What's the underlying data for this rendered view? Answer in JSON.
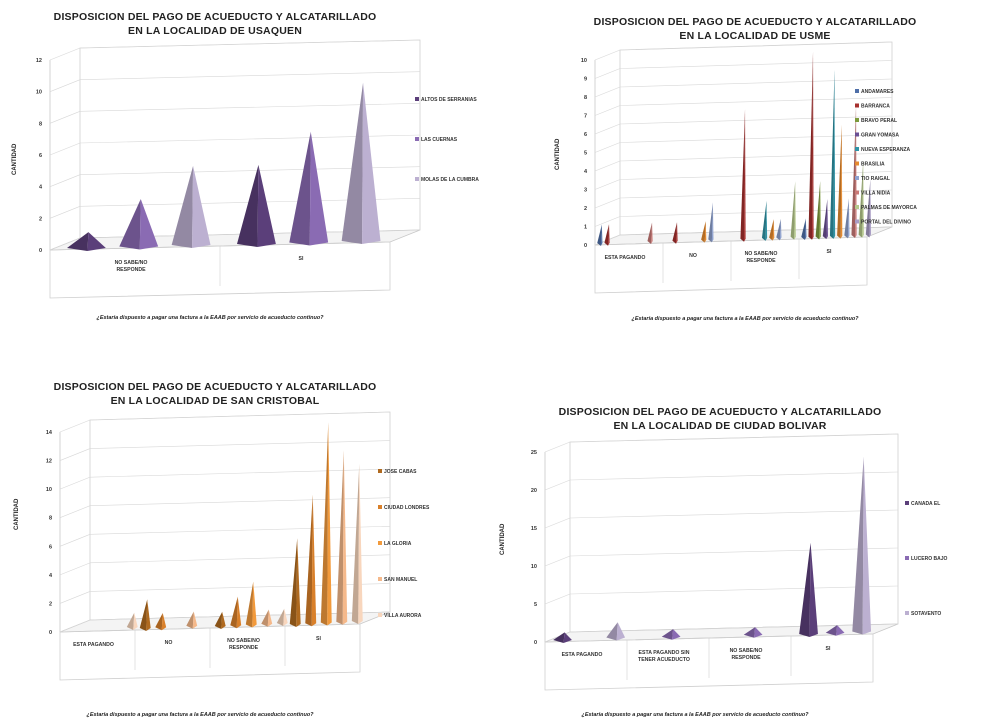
{
  "chart_data": [
    {
      "type": "bar",
      "title_line1": "DISPOSICION DEL PAGO DE ACUEDUCTO Y ALCATARILLADO",
      "title_line2": "EN LA LOCALIDAD  DE  USAQUEN",
      "ylabel": "CANTIDAD",
      "xlabel": "¿Estaria dispuesto a pagar una factura a la EAAB por servicio de acueducto continuo?",
      "yticks": [
        0,
        2,
        4,
        6,
        8,
        10,
        12
      ],
      "ylim": [
        0,
        12
      ],
      "categories": [
        "NO SABE/NO RESPONDE",
        "SI"
      ],
      "series": [
        {
          "name": "ALTOS DE SERRANIAS",
          "color": "#5b3f7a",
          "values": [
            1,
            5
          ]
        },
        {
          "name": "LAS CUERNAS",
          "color": "#8a6bb3",
          "values": [
            3,
            7
          ]
        },
        {
          "name": "MOLAS DE LA CUMBRA",
          "color": "#bcb0d1",
          "values": [
            5,
            10
          ]
        }
      ]
    },
    {
      "type": "bar",
      "title_line1": "DISPOSICION DEL PAGO DE ACUEDUCTO Y ALCATARILLADO",
      "title_line2": "EN LA LOCALIDAD  DE  USME",
      "ylabel": "CANTIDAD",
      "xlabel": "¿Estaria dispuesto a pagar una factura a la EAAB por servicio de acueducto continuo?",
      "yticks": [
        0,
        1,
        2,
        3,
        4,
        5,
        6,
        7,
        8,
        9,
        10
      ],
      "ylim": [
        0,
        10
      ],
      "categories": [
        "ESTA PAGANDO",
        "NO",
        "NO SABE/NO RESPONDE",
        "SI"
      ],
      "series": [
        {
          "name": "ANDAMARES",
          "color": "#4f6fa8",
          "values": [
            1,
            0,
            0,
            1
          ]
        },
        {
          "name": "BARRANCA",
          "color": "#a6302e",
          "values": [
            1,
            1,
            7,
            10
          ]
        },
        {
          "name": "BRAVO PERAL",
          "color": "#7d9a3c",
          "values": [
            0,
            0,
            0,
            3
          ]
        },
        {
          "name": "GRAN YOMASA",
          "color": "#6b4f93",
          "values": [
            0,
            0,
            0,
            2
          ]
        },
        {
          "name": "NUEVA ESPERANZA",
          "color": "#2f93a6",
          "values": [
            0,
            0,
            2,
            9
          ]
        },
        {
          "name": "BRASILIA",
          "color": "#e58a2f",
          "values": [
            0,
            1,
            1,
            6
          ]
        },
        {
          "name": "TIO RAIGAL",
          "color": "#8ea1cf",
          "values": [
            0,
            2,
            1,
            2
          ]
        },
        {
          "name": "VILLA NIDIA",
          "color": "#c97a77",
          "values": [
            1,
            0,
            0,
            7
          ]
        },
        {
          "name": "PALMAS DE MAYORCA",
          "color": "#b6c98c",
          "values": [
            0,
            0,
            3,
            4
          ]
        },
        {
          "name": "PORTAL DEL DIVINO",
          "color": "#a89cc4",
          "values": [
            0,
            0,
            0,
            3
          ]
        }
      ]
    },
    {
      "type": "bar",
      "title_line1": "DISPOSICION DEL PAGO DE ACUEDUCTO Y ALCATARILLADO",
      "title_line2": "EN LA LOCALIDAD  DE  SAN CRISTOBAL",
      "ylabel": "CANTIDAD",
      "xlabel": "¿Estaria dispuesto a pagar una factura a la EAAB por servicio de acueducto continuo?",
      "yticks": [
        0,
        2,
        4,
        6,
        8,
        10,
        12,
        14
      ],
      "ylim": [
        0,
        14
      ],
      "categories": [
        "ESTA PAGANDO",
        "NO",
        "NO SABE/NO RESPONDE",
        "SI"
      ],
      "series": [
        {
          "name": "JOSE CABAS",
          "color": "#b06a1f",
          "values": [
            0,
            2,
            1,
            6
          ]
        },
        {
          "name": "CIUDAD LONDRES",
          "color": "#d9802a",
          "values": [
            0,
            1,
            2,
            9
          ]
        },
        {
          "name": "LA GLORIA",
          "color": "#f29a3c",
          "values": [
            0,
            0,
            3,
            14
          ]
        },
        {
          "name": "SAN MANUEL",
          "color": "#f5b98b",
          "values": [
            0,
            1,
            1,
            12
          ]
        },
        {
          "name": "VILLA AURORA",
          "color": "#f8d6bd",
          "values": [
            1,
            0,
            1,
            11
          ]
        }
      ]
    },
    {
      "type": "bar",
      "title_line1": "DISPOSICION DEL PAGO DE ACUEDUCTO Y ALCATARILLADO",
      "title_line2": "EN LA LOCALIDAD  DE  CIUDAD BOLIVAR",
      "ylabel": "CANTIDAD",
      "xlabel": "¿Estaria dispuesto a pagar una factura a la EAAB por servicio de acueducto continuo?",
      "yticks": [
        0,
        5,
        10,
        15,
        20,
        25
      ],
      "ylim": [
        0,
        25
      ],
      "categories": [
        "ESTA PAGANDO",
        "ESTA PAGANDO SIN TENER ACUEDUCTO",
        "NO SABE/NO RESPONDE",
        "SI"
      ],
      "series": [
        {
          "name": "CANADA EL",
          "color": "#5b3f7a",
          "values": [
            1,
            0,
            0,
            12
          ]
        },
        {
          "name": "LUCERO BAJO",
          "color": "#8a6bb3",
          "values": [
            0,
            1,
            1,
            1
          ]
        },
        {
          "name": "SOTAVENTO",
          "color": "#bcb0d1",
          "values": [
            2,
            0,
            0,
            23
          ]
        }
      ]
    }
  ]
}
